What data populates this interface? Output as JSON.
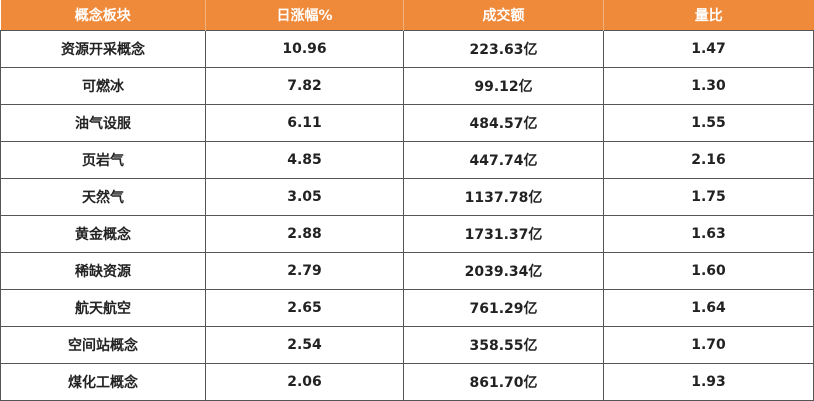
{
  "table": {
    "headers": [
      "概念板块",
      "日涨幅%",
      "成交额",
      "量比"
    ],
    "rows": [
      [
        "资源开采概念",
        "10.96",
        "223.63亿",
        "1.47"
      ],
      [
        "可燃冰",
        "7.82",
        "99.12亿",
        "1.30"
      ],
      [
        "油气设服",
        "6.11",
        "484.57亿",
        "1.55"
      ],
      [
        "页岩气",
        "4.85",
        "447.74亿",
        "2.16"
      ],
      [
        "天然气",
        "3.05",
        "1137.78亿",
        "1.75"
      ],
      [
        "黄金概念",
        "2.88",
        "1731.37亿",
        "1.63"
      ],
      [
        "稀缺资源",
        "2.79",
        "2039.34亿",
        "1.60"
      ],
      [
        "航天航空",
        "2.65",
        "761.29亿",
        "1.64"
      ],
      [
        "空间站概念",
        "2.54",
        "358.55亿",
        "1.70"
      ],
      [
        "煤化工概念",
        "2.06",
        "861.70亿",
        "1.93"
      ]
    ]
  }
}
